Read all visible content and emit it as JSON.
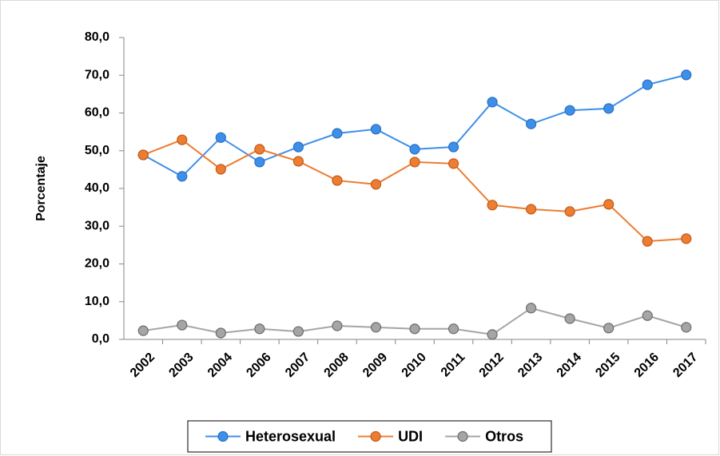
{
  "chart_data": {
    "type": "line",
    "y_label": "Porcentaje",
    "categories": [
      "2002",
      "2003",
      "2004",
      "2006",
      "2007",
      "2008",
      "2009",
      "2010",
      "2011",
      "2012",
      "2013",
      "2014",
      "2015",
      "2016",
      "2017"
    ],
    "series": [
      {
        "name": "Heterosexual",
        "color": "#3d8fe8",
        "values": [
          48.9,
          43.2,
          53.5,
          47.0,
          51.0,
          54.6,
          55.7,
          50.4,
          51.0,
          62.9,
          57.1,
          60.7,
          61.2,
          67.5,
          70.1
        ]
      },
      {
        "name": "UDI",
        "color": "#ed7d31",
        "values": [
          48.9,
          52.9,
          45.1,
          50.4,
          47.2,
          42.1,
          41.1,
          47.0,
          46.6,
          35.6,
          34.5,
          33.9,
          35.8,
          26.0,
          26.7
        ]
      },
      {
        "name": "Otros",
        "color": "#a5a5a5",
        "values": [
          2.3,
          3.8,
          1.7,
          2.8,
          2.1,
          3.6,
          3.2,
          2.8,
          2.8,
          1.3,
          8.3,
          5.5,
          3.0,
          6.3,
          3.2
        ]
      }
    ],
    "ylim": [
      0,
      80
    ],
    "yticks": [
      {
        "value": 0,
        "label": "0,0"
      },
      {
        "value": 10,
        "label": "10,0"
      },
      {
        "value": 20,
        "label": "20,0"
      },
      {
        "value": 30,
        "label": "30,0"
      },
      {
        "value": 40,
        "label": "40,0"
      },
      {
        "value": 50,
        "label": "50,0"
      },
      {
        "value": 60,
        "label": "60,0"
      },
      {
        "value": 70,
        "label": "70,0"
      },
      {
        "value": 80,
        "label": "80,0"
      }
    ],
    "legend": "bottom"
  }
}
